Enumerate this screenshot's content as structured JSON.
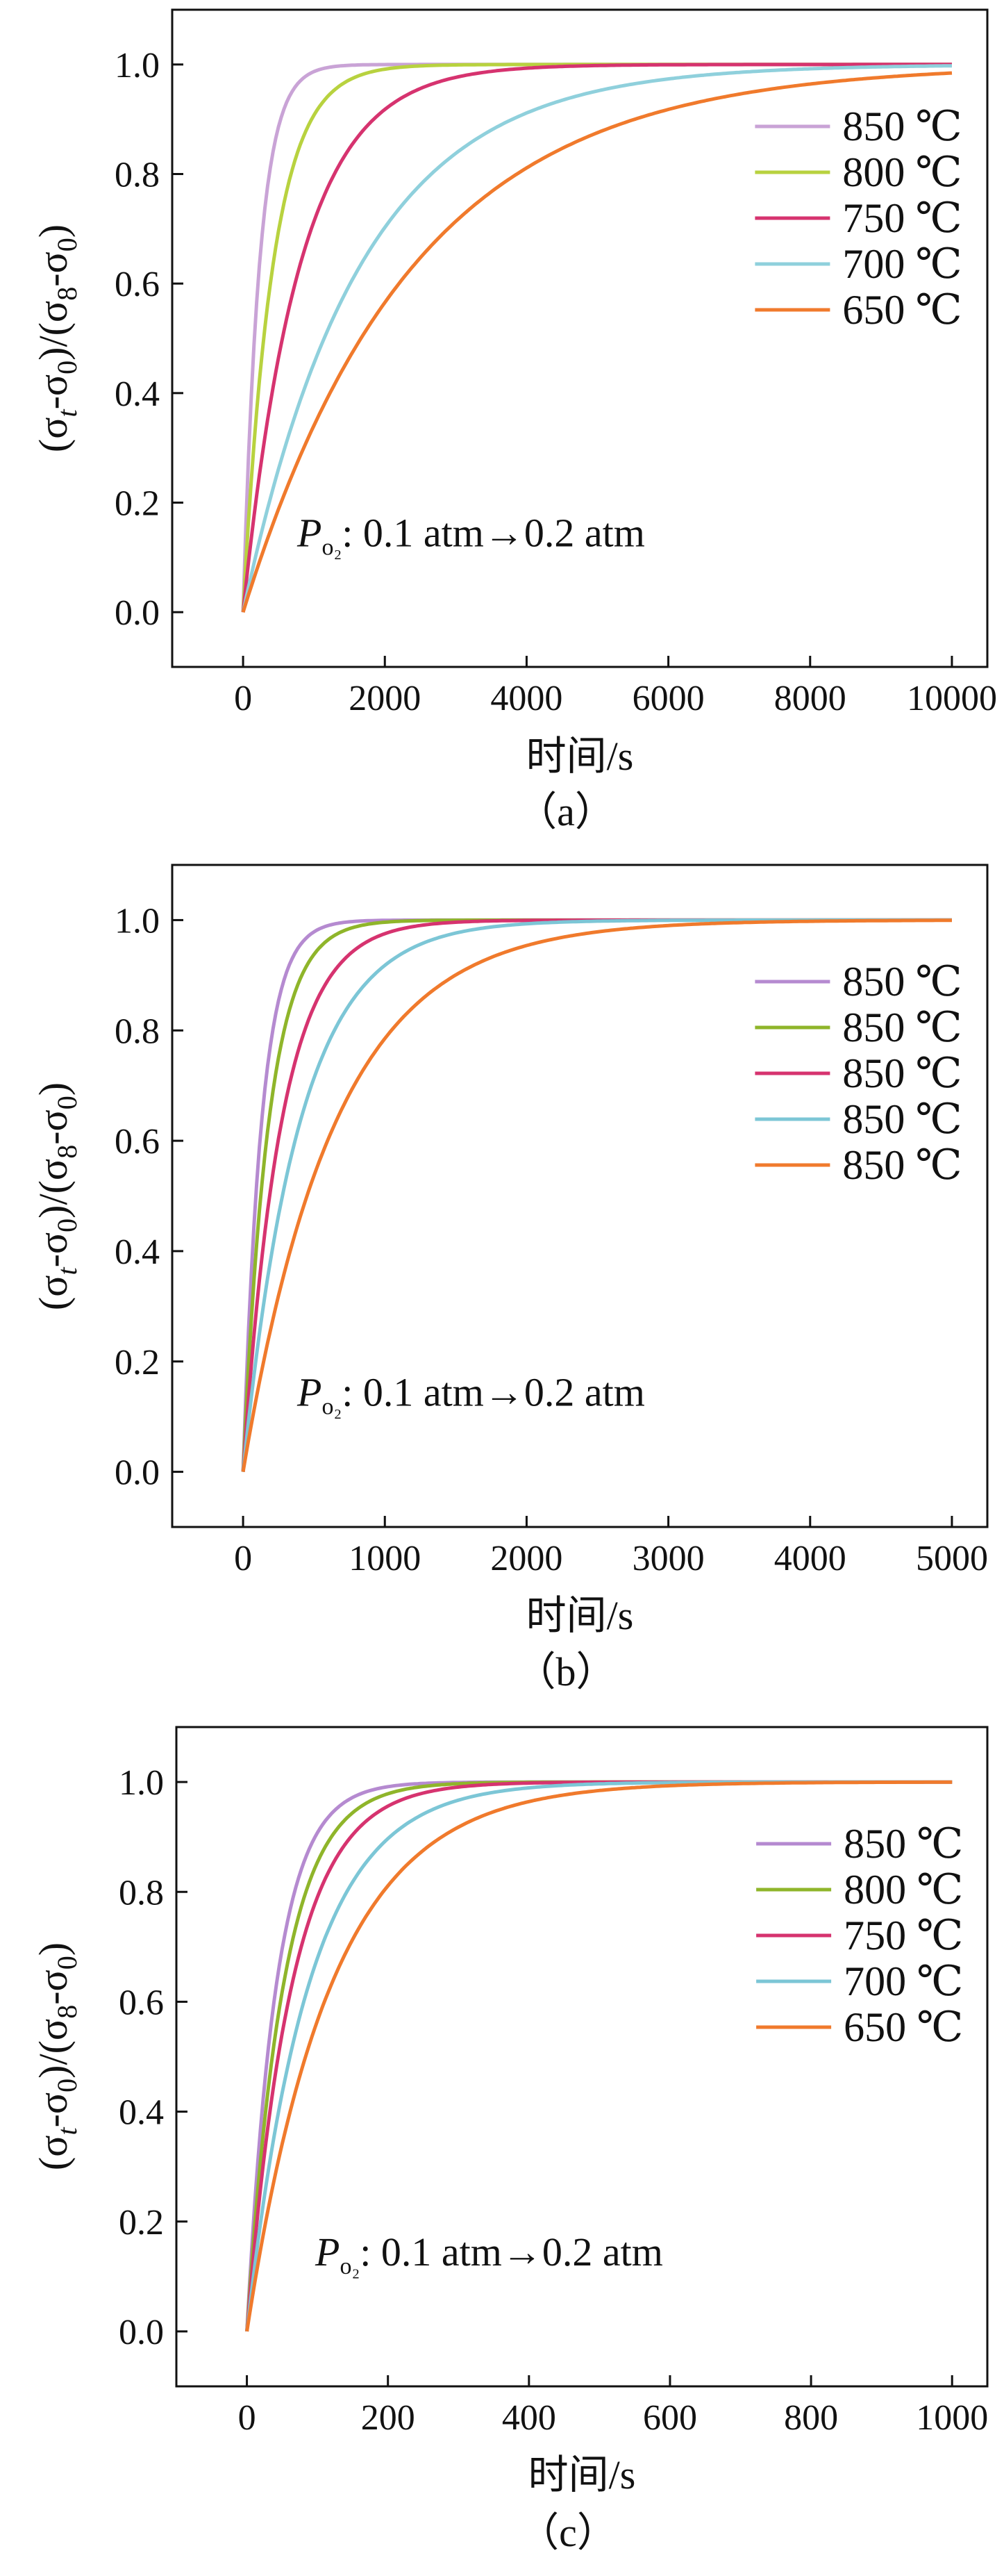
{
  "figure": {
    "ylabel_parts": [
      "(σ",
      "t",
      "-σ",
      "0",
      ")/(σ",
      "8",
      "-σ",
      "0",
      ")"
    ]
  },
  "chart_data": [
    {
      "panel": "（a）",
      "type": "line",
      "xlabel": "时间/s",
      "ylabel": "(σt-σ0)/(σ8-σ0)",
      "xlim": [
        -1000,
        10500
      ],
      "ylim": [
        -0.1,
        1.1
      ],
      "xticks": [
        0,
        2000,
        4000,
        6000,
        8000,
        10000
      ],
      "yticks": [
        0.0,
        0.2,
        0.4,
        0.6,
        0.8,
        1.0
      ],
      "x_max": 10000,
      "annotation": {
        "p_symbol": "P",
        "p_sub": "o₂",
        "text": ": 0.1 atm→0.2 atm"
      },
      "legend_position": "right",
      "series": [
        {
          "name": "850 ℃",
          "color": "#c9a3d6",
          "time_constant_s": 230
        },
        {
          "name": "800 ℃",
          "color": "#b8d23f",
          "time_constant_s": 420
        },
        {
          "name": "750 ℃",
          "color": "#d6336f",
          "time_constant_s": 800
        },
        {
          "name": "700 ℃",
          "color": "#8fd0dc",
          "time_constant_s": 1650
        },
        {
          "name": "650 ℃",
          "color": "#f07a2c",
          "time_constant_s": 2400
        }
      ]
    },
    {
      "panel": "（b）",
      "type": "line",
      "xlabel": "时间/s",
      "ylabel": "(σt-σ0)/(σ8-σ0)",
      "xlim": [
        -500,
        5250
      ],
      "ylim": [
        -0.1,
        1.1
      ],
      "xticks": [
        0,
        1000,
        2000,
        3000,
        4000,
        5000
      ],
      "yticks": [
        0.0,
        0.2,
        0.4,
        0.6,
        0.8,
        1.0
      ],
      "x_max": 5000,
      "annotation": {
        "p_symbol": "P",
        "p_sub": "o₂",
        "text": ": 0.1 atm→0.2 atm"
      },
      "legend_position": "right",
      "series": [
        {
          "name": "850 ℃",
          "color": "#b58ad0",
          "time_constant_s": 130
        },
        {
          "name": "850 ℃",
          "color": "#8fb52a",
          "time_constant_s": 180
        },
        {
          "name": "850 ℃",
          "color": "#d6336f",
          "time_constant_s": 270
        },
        {
          "name": "850 ℃",
          "color": "#7cc6d6",
          "time_constant_s": 400
        },
        {
          "name": "850 ℃",
          "color": "#f07a2c",
          "time_constant_s": 650
        }
      ]
    },
    {
      "panel": "（c）",
      "type": "line",
      "xlabel": "时间/s",
      "ylabel": "(σt-σ0)/(σ8-σ0)",
      "xlim": [
        -100,
        1050
      ],
      "ylim": [
        -0.1,
        1.1
      ],
      "xticks": [
        0,
        200,
        400,
        600,
        800,
        1000
      ],
      "yticks": [
        0.0,
        0.2,
        0.4,
        0.6,
        0.8,
        1.0
      ],
      "x_max": 1000,
      "annotation": {
        "p_symbol": "P",
        "p_sub": "o₂",
        "text": ": 0.1 atm→0.2 atm"
      },
      "legend_position": "right",
      "series": [
        {
          "name": "850 ℃",
          "color": "#b58ad0",
          "time_constant_s": 42
        },
        {
          "name": "800 ℃",
          "color": "#8fb52a",
          "time_constant_s": 52
        },
        {
          "name": "750 ℃",
          "color": "#d6336f",
          "time_constant_s": 64
        },
        {
          "name": "700 ℃",
          "color": "#7cc6d6",
          "time_constant_s": 88
        },
        {
          "name": "650 ℃",
          "color": "#f07a2c",
          "time_constant_s": 120
        }
      ]
    }
  ]
}
